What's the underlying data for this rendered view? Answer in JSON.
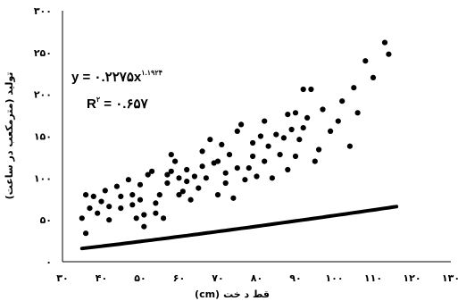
{
  "chart_data": {
    "type": "scatter",
    "xlabel": "قطر درخت (cm)",
    "xlabel_display": "قط د خت",
    "xlabel_unit": "(cm)",
    "ylabel": "تولید (مترمکعب در ساعت)",
    "xlim": [
      30,
      130
    ],
    "ylim": [
      0,
      300
    ],
    "x_ticks": [
      30,
      40,
      50,
      60,
      70,
      80,
      90,
      100,
      110,
      120,
      130
    ],
    "y_ticks": [
      0,
      50,
      100,
      150,
      200,
      250,
      300
    ],
    "x_tick_labels": [
      "۳۰",
      "۴۰",
      "۵۰",
      "۶۰",
      "۷۰",
      "۸۰",
      "۹۰",
      "۱۰۰",
      "۱۱۰",
      "۱۲۰",
      "۱۳۰"
    ],
    "y_tick_labels": [
      "۰",
      "۵۰",
      "۱۰۰",
      "۱۵۰",
      "۲۰۰",
      "۲۵۰",
      "۳۰۰"
    ],
    "grid": false,
    "legend": "none",
    "marker_color": "#000000",
    "equation": {
      "text": "y = ۰.۲۲۷۵x",
      "exponent": "۱.۱۹۲۴",
      "r2_label": "R",
      "r2_sup": "۲",
      "r2_value": " = ۰.۶۵۷"
    },
    "trendline": {
      "type": "power",
      "a": 0.2275,
      "b": 1.1924,
      "x_range": [
        35,
        116
      ]
    },
    "points": [
      [
        35,
        52
      ],
      [
        36,
        34
      ],
      [
        36,
        80
      ],
      [
        37,
        64
      ],
      [
        38,
        78
      ],
      [
        39,
        58
      ],
      [
        40,
        72
      ],
      [
        41,
        85
      ],
      [
        42,
        50
      ],
      [
        42,
        66
      ],
      [
        44,
        90
      ],
      [
        45,
        78
      ],
      [
        45,
        64
      ],
      [
        47,
        98
      ],
      [
        48,
        80
      ],
      [
        48,
        68
      ],
      [
        49,
        52
      ],
      [
        50,
        74
      ],
      [
        50,
        92
      ],
      [
        51,
        42
      ],
      [
        51,
        56
      ],
      [
        52,
        104
      ],
      [
        53,
        108
      ],
      [
        54,
        58
      ],
      [
        54,
        70
      ],
      [
        55,
        80
      ],
      [
        56,
        52
      ],
      [
        57,
        104
      ],
      [
        57,
        94
      ],
      [
        58,
        128
      ],
      [
        58,
        108
      ],
      [
        59,
        120
      ],
      [
        60,
        80
      ],
      [
        60,
        100
      ],
      [
        61,
        84
      ],
      [
        62,
        96
      ],
      [
        62,
        110
      ],
      [
        63,
        74
      ],
      [
        64,
        102
      ],
      [
        65,
        88
      ],
      [
        66,
        132
      ],
      [
        66,
        114
      ],
      [
        67,
        100
      ],
      [
        68,
        146
      ],
      [
        69,
        118
      ],
      [
        70,
        120
      ],
      [
        70,
        80
      ],
      [
        71,
        140
      ],
      [
        72,
        94
      ],
      [
        72,
        106
      ],
      [
        73,
        128
      ],
      [
        74,
        76
      ],
      [
        75,
        156
      ],
      [
        75,
        112
      ],
      [
        76,
        164
      ],
      [
        77,
        98
      ],
      [
        78,
        112
      ],
      [
        79,
        142
      ],
      [
        79,
        126
      ],
      [
        80,
        102
      ],
      [
        81,
        150
      ],
      [
        82,
        168
      ],
      [
        82,
        120
      ],
      [
        83,
        138
      ],
      [
        84,
        100
      ],
      [
        85,
        152
      ],
      [
        86,
        128
      ],
      [
        87,
        148
      ],
      [
        88,
        176
      ],
      [
        88,
        110
      ],
      [
        89,
        158
      ],
      [
        90,
        178
      ],
      [
        90,
        126
      ],
      [
        91,
        146
      ],
      [
        92,
        206
      ],
      [
        92,
        160
      ],
      [
        93,
        172
      ],
      [
        94,
        206
      ],
      [
        95,
        120
      ],
      [
        96,
        134
      ],
      [
        97,
        182
      ],
      [
        99,
        156
      ],
      [
        101,
        168
      ],
      [
        102,
        192
      ],
      [
        104,
        138
      ],
      [
        105,
        208
      ],
      [
        106,
        178
      ],
      [
        108,
        240
      ],
      [
        110,
        220
      ],
      [
        113,
        262
      ],
      [
        114,
        248
      ]
    ]
  }
}
